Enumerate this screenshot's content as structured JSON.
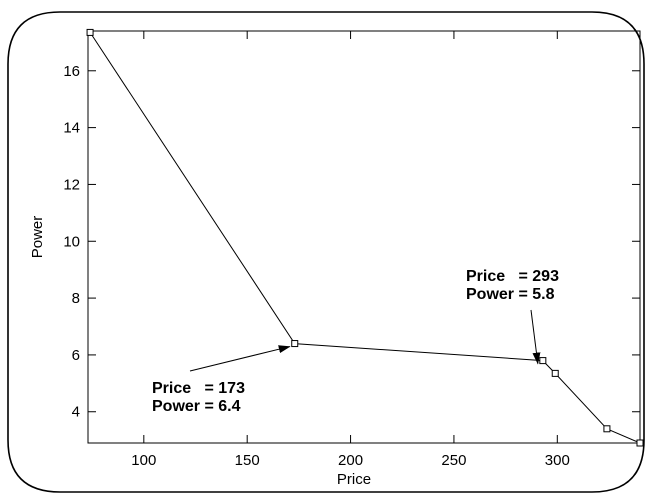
{
  "chart_data": {
    "type": "line",
    "xlabel": "Price",
    "ylabel": "Power",
    "xlim": [
      73,
      340
    ],
    "ylim": [
      2.9,
      17.4
    ],
    "xticks": [
      100,
      150,
      200,
      250,
      300
    ],
    "yticks": [
      4,
      6,
      8,
      10,
      12,
      14,
      16
    ],
    "grid": false,
    "series": [
      {
        "x": [
          74,
          173,
          293,
          299,
          324,
          340
        ],
        "y": [
          17.35,
          6.4,
          5.8,
          5.35,
          3.4,
          2.9
        ],
        "marker": "square",
        "color": "#000000"
      }
    ],
    "annotations": [
      {
        "lines": [
          "Price   = 173",
          "Power = 6.4"
        ],
        "target": [
          173,
          6.4
        ]
      },
      {
        "lines": [
          "Price   = 293",
          "Power = 5.8"
        ],
        "target": [
          293,
          5.8
        ]
      }
    ]
  }
}
